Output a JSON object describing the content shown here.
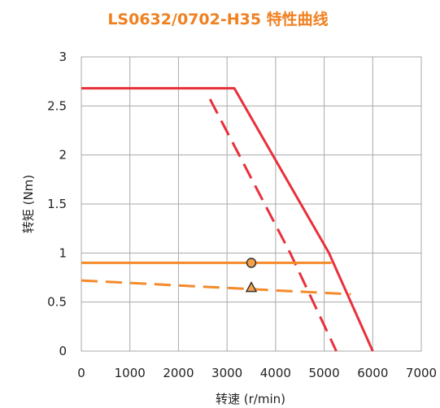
{
  "chart_data": {
    "type": "line",
    "title": "LS0632/0702-H35 特性曲线",
    "xlabel": "转速 (r/min)",
    "ylabel": "转矩 (Nm)",
    "xlim": [
      0,
      7000
    ],
    "ylim": [
      0,
      3
    ],
    "xticks": [
      "0",
      "1000",
      "2000",
      "3000",
      "4000",
      "5000",
      "6000",
      "7000"
    ],
    "yticks": [
      "0",
      "0.5",
      "1",
      "1.5",
      "2",
      "2.5",
      "3"
    ],
    "grid": true,
    "legend": "none",
    "series": [
      {
        "color": "#e8303a",
        "style": "solid",
        "width": 3,
        "x": [
          0,
          3150,
          5100,
          6000
        ],
        "y": [
          2.68,
          2.68,
          1.0,
          0.0
        ]
      },
      {
        "color": "#e8303a",
        "style": "dashed",
        "width": 3,
        "x": [
          2650,
          4300,
          5250
        ],
        "y": [
          2.57,
          1.0,
          0.0
        ]
      },
      {
        "color": "#f58a2a",
        "style": "solid",
        "width": 3,
        "x": [
          0,
          5150
        ],
        "y": [
          0.9,
          0.9
        ]
      },
      {
        "color": "#f58a2a",
        "style": "dashed",
        "width": 3,
        "x": [
          0,
          5550
        ],
        "y": [
          0.72,
          0.58
        ]
      }
    ],
    "markers": [
      {
        "shape": "circle",
        "x": 3500,
        "y": 0.9,
        "fill": "#f5a04a",
        "stroke": "#333333"
      },
      {
        "shape": "triangle",
        "x": 3500,
        "y": 0.65,
        "fill": "#f5a04a",
        "stroke": "#333333"
      }
    ],
    "colors": {
      "title": "#f08020",
      "grid": "#aaaaaa",
      "frame": "#aaaaaa"
    }
  }
}
